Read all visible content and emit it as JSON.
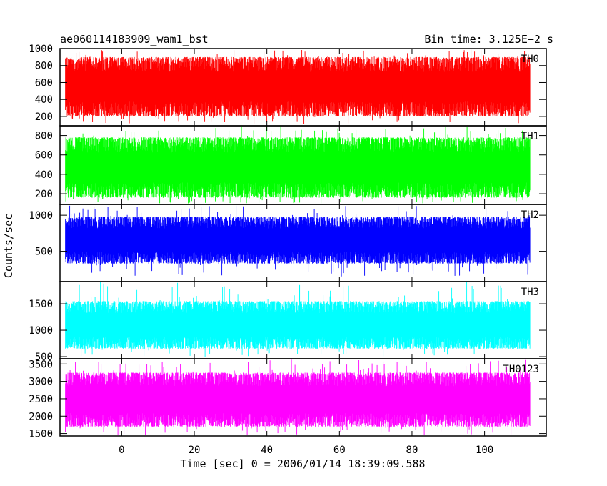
{
  "chart_data": {
    "type": "line",
    "title_left": "ae060114183909_wam1_bst",
    "title_right": "Bin time: 3.125E−2 s",
    "xlabel": "Time [sec] 0 = 2006/01/14 18:39:09.588",
    "ylabel": "Counts/sec",
    "xlim": [
      -17,
      117
    ],
    "x_ticks": [
      0,
      20,
      40,
      60,
      80,
      100
    ],
    "x_tick_labels": [
      "0",
      "20",
      "40",
      "60",
      "80",
      "100"
    ],
    "data_x_range": [
      -15.5,
      112.5
    ],
    "grid": false,
    "panels": [
      {
        "name": "TH0",
        "color": "#ff0000",
        "ylim": [
          90,
          1000
        ],
        "y_ticks": [
          200,
          400,
          600,
          800,
          1000
        ],
        "y_tick_labels": [
          "200",
          "400",
          "600",
          "800",
          "1000"
        ],
        "typical_range": [
          200,
          900
        ],
        "extreme_range": [
          110,
          1000
        ]
      },
      {
        "name": "TH1",
        "color": "#00ff00",
        "ylim": [
          90,
          900
        ],
        "y_ticks": [
          200,
          400,
          600,
          800
        ],
        "y_tick_labels": [
          "200",
          "400",
          "600",
          "800"
        ],
        "typical_range": [
          160,
          780
        ],
        "extreme_range": [
          100,
          900
        ]
      },
      {
        "name": "TH2",
        "color": "#0000ff",
        "ylim": [
          80,
          1150
        ],
        "y_ticks": [
          500,
          1000
        ],
        "y_tick_labels": [
          "500",
          "1000"
        ],
        "typical_range": [
          330,
          980
        ],
        "extreme_range": [
          150,
          1150
        ]
      },
      {
        "name": "TH3",
        "color": "#00ffff",
        "ylim": [
          460,
          1920
        ],
        "y_ticks": [
          500,
          1000,
          1500
        ],
        "y_tick_labels": [
          "500",
          "1000",
          "1500"
        ],
        "typical_range": [
          650,
          1550
        ],
        "extreme_range": [
          500,
          1920
        ]
      },
      {
        "name": "TH0123",
        "color": "#ff00ff",
        "ylim": [
          1430,
          3650
        ],
        "y_ticks": [
          1500,
          2000,
          2500,
          3000,
          3500
        ],
        "y_tick_labels": [
          "1500",
          "2000",
          "2500",
          "3000",
          "3500"
        ],
        "typical_range": [
          1700,
          3250
        ],
        "extreme_range": [
          1450,
          3650
        ]
      }
    ]
  }
}
